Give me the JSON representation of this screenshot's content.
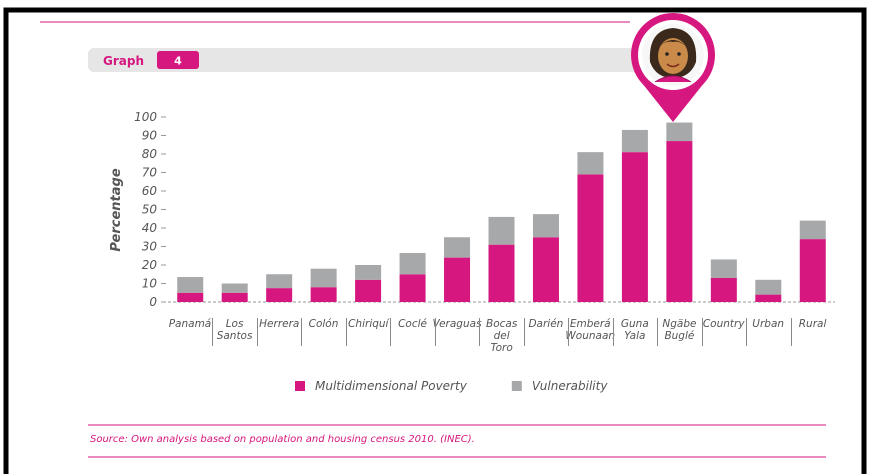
{
  "header": {
    "graph_label": "Graph",
    "graph_number": 4
  },
  "chart_data": {
    "type": "bar",
    "stacked": true,
    "y_label": "Percentage",
    "categories": [
      "Panamá",
      "Los Santos",
      "Herrera",
      "Colón",
      "Chiriquí",
      "Coclé",
      "Veraguas",
      "Bocas del Toro",
      "Darién",
      "Emberá Wounaan",
      "Guna Yala",
      "Ngäbe Buglé",
      "Country",
      "Urban",
      "Rural"
    ],
    "series": [
      {
        "name": "Multidimensional Poverty",
        "color": "#d6177f",
        "values": [
          5,
          5,
          7.5,
          8,
          12,
          15,
          24,
          31,
          35,
          69,
          81,
          87,
          13,
          4,
          34
        ]
      },
      {
        "name": "Vulnerability",
        "color": "#a7a8aa",
        "values": [
          8.5,
          5,
          7.5,
          10,
          8,
          11.5,
          11,
          15,
          12.5,
          12,
          12,
          10,
          10,
          8,
          10
        ]
      }
    ],
    "ylim": [
      0,
      100
    ],
    "yticks": [
      0,
      10,
      20,
      30,
      40,
      50,
      60,
      70,
      80,
      90,
      100
    ]
  },
  "source": "Source: Own analysis based on population and housing census 2010. (INEC)."
}
